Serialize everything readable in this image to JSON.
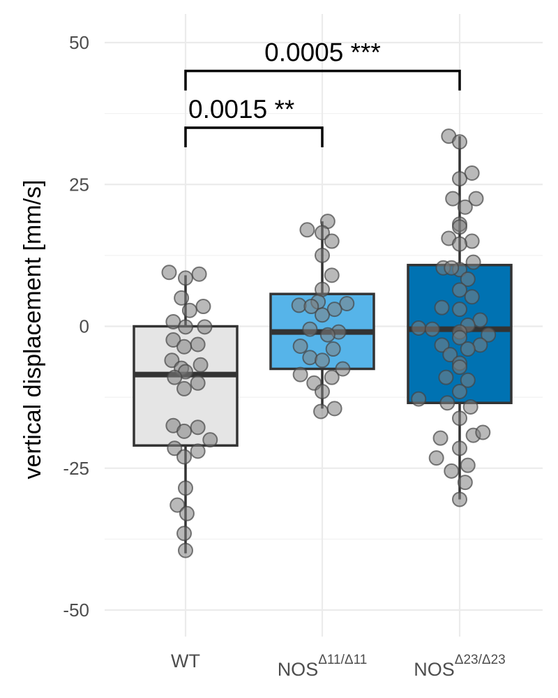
{
  "chart_data": {
    "type": "box",
    "ylabel": "vertical displacement [mm/s]",
    "ylim": [
      -55,
      55
    ],
    "yticks": [
      50,
      25,
      0,
      -25,
      -50
    ],
    "ytick_labels": [
      "50",
      "25",
      "0",
      "-25",
      "-50"
    ],
    "grid": true,
    "groups": [
      {
        "label": "WT",
        "label_sup": "",
        "color": "#e5e5e5",
        "box": {
          "q1": -21,
          "median": -8.5,
          "q3": 0,
          "whisker_low": -40,
          "whisker_high": 9
        },
        "points": [
          [
            -0.12,
            9.5
          ],
          [
            0.1,
            9.2
          ],
          [
            0.0,
            8.5
          ],
          [
            -0.03,
            5
          ],
          [
            0.13,
            3.5
          ],
          [
            0.03,
            2.8
          ],
          [
            -0.09,
            0.8
          ],
          [
            0.0,
            -0.1
          ],
          [
            0.14,
            -0.1
          ],
          [
            -0.09,
            -2.4
          ],
          [
            0.09,
            -3.2
          ],
          [
            -0.01,
            -3.6
          ],
          [
            -0.1,
            -6
          ],
          [
            0.11,
            -6.8
          ],
          [
            -0.03,
            -7.4
          ],
          [
            0.0,
            -8
          ],
          [
            -0.08,
            -9
          ],
          [
            0.09,
            -10
          ],
          [
            -0.01,
            -11
          ],
          [
            -0.09,
            -17.5
          ],
          [
            0.09,
            -17.8
          ],
          [
            -0.01,
            -18.5
          ],
          [
            0.18,
            -20
          ],
          [
            -0.08,
            -21.5
          ],
          [
            0.09,
            -22
          ],
          [
            -0.01,
            -23
          ],
          [
            0.0,
            -28.5
          ],
          [
            -0.06,
            -31.5
          ],
          [
            0.01,
            -33
          ],
          [
            -0.01,
            -36.5
          ],
          [
            0.0,
            -39.5
          ]
        ]
      },
      {
        "label": "NOS",
        "label_sup": "Δ11/Δ11",
        "color": "#56b4e9",
        "box": {
          "q1": -7.5,
          "median": -1,
          "q3": 5.7,
          "whisker_low": -14.5,
          "whisker_high": 18.5
        },
        "points": [
          [
            0.04,
            18.5
          ],
          [
            -0.11,
            17
          ],
          [
            0.0,
            16.5
          ],
          [
            0.07,
            15
          ],
          [
            0.0,
            12.5
          ],
          [
            0.07,
            9
          ],
          [
            0.0,
            6.5
          ],
          [
            -0.03,
            4.3
          ],
          [
            0.18,
            4
          ],
          [
            -0.17,
            3.7
          ],
          [
            -0.08,
            3.5
          ],
          [
            0.09,
            3
          ],
          [
            0.0,
            2
          ],
          [
            -0.09,
            -0.5
          ],
          [
            0.12,
            -1
          ],
          [
            0.04,
            -1.5
          ],
          [
            -0.16,
            -3.5
          ],
          [
            0.08,
            -4
          ],
          [
            -0.09,
            -5.5
          ],
          [
            0.0,
            -6
          ],
          [
            0.15,
            -7.5
          ],
          [
            -0.16,
            -8.5
          ],
          [
            0.07,
            -9
          ],
          [
            -0.06,
            -10
          ],
          [
            0.0,
            -11.5
          ],
          [
            0.09,
            -14.5
          ],
          [
            -0.01,
            -15
          ]
        ]
      },
      {
        "label": "NOS",
        "label_sup": "Δ23/Δ23",
        "color": "#0072b2",
        "box": {
          "q1": -13.5,
          "median": -0.5,
          "q3": 10.8,
          "whisker_low": -30.5,
          "whisker_high": 33.5
        },
        "points": [
          [
            -0.08,
            33.5
          ],
          [
            0.0,
            32.5
          ],
          [
            0.09,
            27
          ],
          [
            0.0,
            26
          ],
          [
            -0.05,
            22.5
          ],
          [
            0.12,
            22.5
          ],
          [
            0.04,
            21
          ],
          [
            0.0,
            18
          ],
          [
            0.0,
            17.5
          ],
          [
            -0.08,
            15.5
          ],
          [
            0.09,
            15
          ],
          [
            0.0,
            14.5
          ],
          [
            0.1,
            11.3
          ],
          [
            -0.12,
            10.3
          ],
          [
            0.0,
            10
          ],
          [
            -0.06,
            10.3
          ],
          [
            0.06,
            8.3
          ],
          [
            0.0,
            6.4
          ],
          [
            0.09,
            5.2
          ],
          [
            -0.13,
            3.3
          ],
          [
            0.0,
            3
          ],
          [
            0.15,
            1.1
          ],
          [
            0.06,
            0.2
          ],
          [
            -0.3,
            -0.3
          ],
          [
            -0.2,
            -0.5
          ],
          [
            0.0,
            -1
          ],
          [
            0.21,
            -1.5
          ],
          [
            0.0,
            -2
          ],
          [
            0.15,
            -3.3
          ],
          [
            -0.13,
            -3.3
          ],
          [
            0.06,
            -4
          ],
          [
            -0.07,
            -5
          ],
          [
            0.0,
            -6.5
          ],
          [
            0.0,
            -7.2
          ],
          [
            -0.1,
            -9
          ],
          [
            0.06,
            -9.5
          ],
          [
            0.0,
            -11.5
          ],
          [
            -0.3,
            -12.8
          ],
          [
            -0.09,
            -13.5
          ],
          [
            0.08,
            -14.2
          ],
          [
            0.0,
            -16.2
          ],
          [
            -0.14,
            -19.7
          ],
          [
            0.1,
            -19.2
          ],
          [
            0.17,
            -18.7
          ],
          [
            0.0,
            -21.5
          ],
          [
            -0.17,
            -23.2
          ],
          [
            0.06,
            -24.5
          ],
          [
            -0.06,
            -25.5
          ],
          [
            0.04,
            -27.5
          ],
          [
            0.0,
            -30.5
          ]
        ]
      }
    ],
    "points_style": {
      "fill": "#7f7f7f",
      "stroke": "#444444",
      "opacity": 0.55
    },
    "annotations": [
      {
        "from": 0,
        "to": 1,
        "y": 35,
        "label": "0.0015 **"
      },
      {
        "from": 0,
        "to": 2,
        "y": 45,
        "label": "0.0005 ***"
      }
    ]
  }
}
